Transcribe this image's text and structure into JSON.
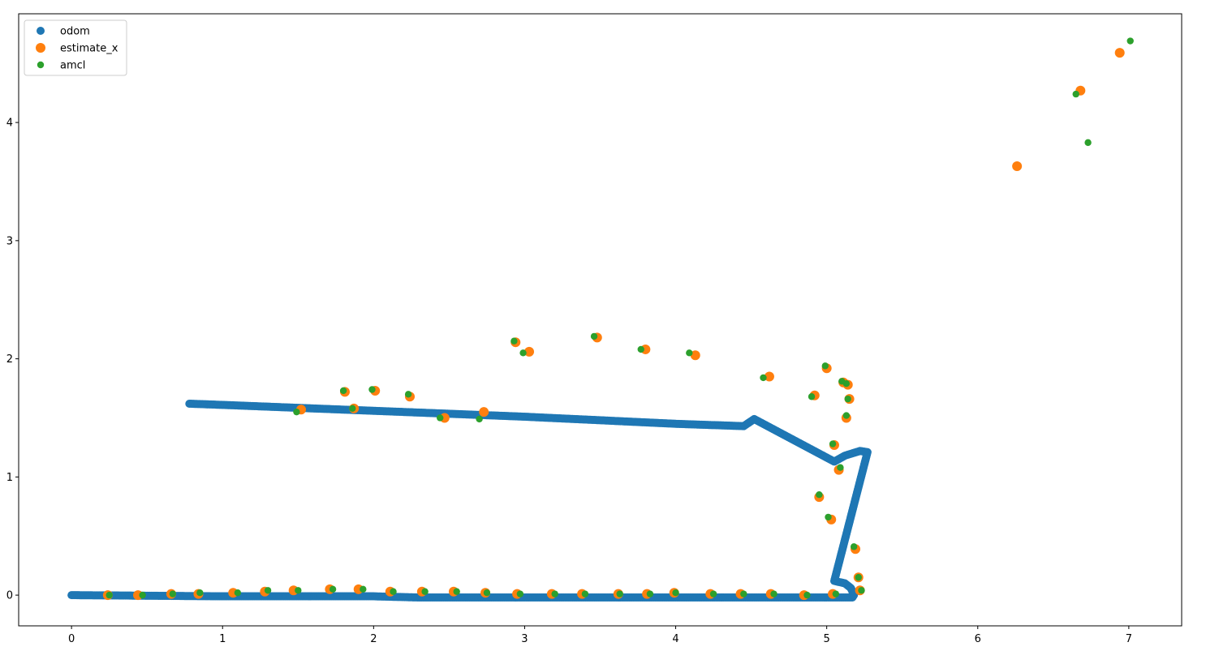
{
  "chart_data": {
    "type": "scatter",
    "title": "",
    "xlabel": "",
    "ylabel": "",
    "xlim": [
      -0.35,
      7.35
    ],
    "ylim": [
      -0.26,
      4.92
    ],
    "xticks": [
      0,
      1,
      2,
      3,
      4,
      5,
      6,
      7
    ],
    "yticks": [
      0,
      1,
      2,
      3,
      4
    ],
    "grid": false,
    "legend_position": "upper-left",
    "legend": [
      "odom",
      "estimate_x",
      "amcl"
    ],
    "series": [
      {
        "name": "odom",
        "color": "#1f77b4",
        "size": "small-dense",
        "path": [
          [
            0.0,
            0.0
          ],
          [
            0.5,
            -0.005
          ],
          [
            1.0,
            -0.01
          ],
          [
            2.0,
            -0.01
          ],
          [
            2.3,
            -0.02
          ],
          [
            3.0,
            -0.02
          ],
          [
            4.0,
            -0.02
          ],
          [
            5.0,
            -0.02
          ],
          [
            5.17,
            -0.02
          ],
          [
            5.18,
            0.0
          ],
          [
            5.16,
            0.06
          ],
          [
            5.12,
            0.1
          ],
          [
            5.05,
            0.12
          ],
          [
            5.27,
            1.21
          ],
          [
            5.22,
            1.22
          ],
          [
            5.12,
            1.18
          ],
          [
            5.05,
            1.13
          ],
          [
            4.52,
            1.49
          ],
          [
            4.45,
            1.43
          ],
          [
            4.0,
            1.45
          ],
          [
            3.0,
            1.51
          ],
          [
            2.0,
            1.56
          ],
          [
            1.0,
            1.61
          ],
          [
            0.78,
            1.62
          ]
        ]
      },
      {
        "name": "estimate_x",
        "color": "#ff7f0e",
        "size": "large",
        "points": [
          [
            0.24,
            0.0
          ],
          [
            0.44,
            0.0
          ],
          [
            0.66,
            0.01
          ],
          [
            0.84,
            0.01
          ],
          [
            1.07,
            0.02
          ],
          [
            1.28,
            0.03
          ],
          [
            1.47,
            0.04
          ],
          [
            1.71,
            0.05
          ],
          [
            1.9,
            0.05
          ],
          [
            2.11,
            0.03
          ],
          [
            2.32,
            0.03
          ],
          [
            2.53,
            0.03
          ],
          [
            2.74,
            0.02
          ],
          [
            2.95,
            0.01
          ],
          [
            3.18,
            0.01
          ],
          [
            3.38,
            0.01
          ],
          [
            3.62,
            0.01
          ],
          [
            3.81,
            0.01
          ],
          [
            3.99,
            0.02
          ],
          [
            4.23,
            0.01
          ],
          [
            4.43,
            0.01
          ],
          [
            4.63,
            0.01
          ],
          [
            4.85,
            0.0
          ],
          [
            5.04,
            0.01
          ],
          [
            5.22,
            0.04
          ],
          [
            5.21,
            0.15
          ],
          [
            5.19,
            0.39
          ],
          [
            5.03,
            0.64
          ],
          [
            4.95,
            0.83
          ],
          [
            5.08,
            1.06
          ],
          [
            5.05,
            1.27
          ],
          [
            5.13,
            1.5
          ],
          [
            5.15,
            1.66
          ],
          [
            5.14,
            1.78
          ],
          [
            5.11,
            1.8
          ],
          [
            5.0,
            1.92
          ],
          [
            4.92,
            1.69
          ],
          [
            4.62,
            1.85
          ],
          [
            4.13,
            2.03
          ],
          [
            3.8,
            2.08
          ],
          [
            3.48,
            2.18
          ],
          [
            3.03,
            2.06
          ],
          [
            2.94,
            2.14
          ],
          [
            2.73,
            1.55
          ],
          [
            2.47,
            1.5
          ],
          [
            2.24,
            1.68
          ],
          [
            2.01,
            1.73
          ],
          [
            1.87,
            1.58
          ],
          [
            1.81,
            1.72
          ],
          [
            1.52,
            1.57
          ],
          [
            6.26,
            3.63
          ],
          [
            6.68,
            4.27
          ],
          [
            6.94,
            4.59
          ]
        ]
      },
      {
        "name": "amcl",
        "color": "#2ca02c",
        "size": "small",
        "points": [
          [
            0.25,
            0.0
          ],
          [
            0.47,
            0.0
          ],
          [
            0.67,
            0.01
          ],
          [
            0.85,
            0.02
          ],
          [
            1.1,
            0.02
          ],
          [
            1.3,
            0.04
          ],
          [
            1.5,
            0.04
          ],
          [
            1.73,
            0.05
          ],
          [
            1.93,
            0.05
          ],
          [
            2.13,
            0.03
          ],
          [
            2.34,
            0.03
          ],
          [
            2.55,
            0.03
          ],
          [
            2.75,
            0.02
          ],
          [
            2.97,
            0.01
          ],
          [
            3.2,
            0.01
          ],
          [
            3.4,
            0.01
          ],
          [
            3.63,
            0.01
          ],
          [
            3.83,
            0.01
          ],
          [
            4.0,
            0.02
          ],
          [
            4.25,
            0.01
          ],
          [
            4.45,
            0.01
          ],
          [
            4.65,
            0.01
          ],
          [
            4.87,
            0.0
          ],
          [
            5.06,
            0.01
          ],
          [
            5.23,
            0.04
          ],
          [
            5.21,
            0.15
          ],
          [
            5.18,
            0.41
          ],
          [
            5.01,
            0.66
          ],
          [
            4.95,
            0.85
          ],
          [
            5.09,
            1.08
          ],
          [
            5.04,
            1.28
          ],
          [
            5.13,
            1.52
          ],
          [
            5.14,
            1.66
          ],
          [
            5.13,
            1.79
          ],
          [
            5.1,
            1.81
          ],
          [
            4.99,
            1.94
          ],
          [
            4.9,
            1.68
          ],
          [
            4.58,
            1.84
          ],
          [
            4.09,
            2.05
          ],
          [
            3.77,
            2.08
          ],
          [
            3.46,
            2.19
          ],
          [
            2.99,
            2.05
          ],
          [
            2.93,
            2.15
          ],
          [
            2.7,
            1.49
          ],
          [
            2.44,
            1.5
          ],
          [
            2.23,
            1.7
          ],
          [
            1.99,
            1.74
          ],
          [
            1.86,
            1.58
          ],
          [
            1.8,
            1.73
          ],
          [
            1.49,
            1.55
          ],
          [
            6.65,
            4.24
          ],
          [
            6.73,
            3.83
          ],
          [
            7.01,
            4.69
          ]
        ]
      }
    ]
  }
}
